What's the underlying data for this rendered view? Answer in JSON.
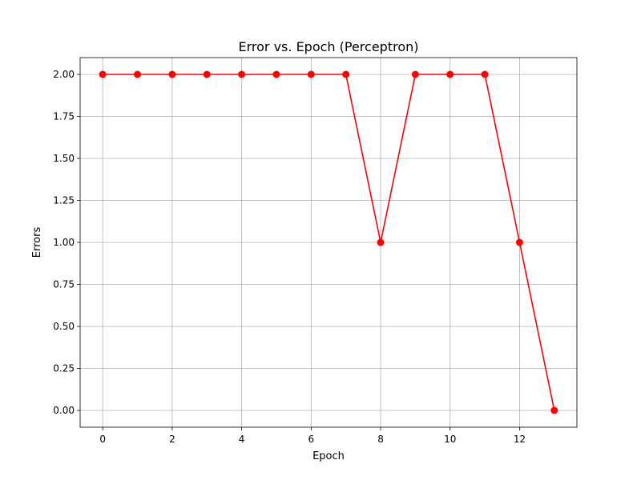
{
  "chart_data": {
    "type": "line",
    "title": "Error vs. Epoch (Perceptron)",
    "xlabel": "Epoch",
    "ylabel": "Errors",
    "x": [
      0,
      1,
      2,
      3,
      4,
      5,
      6,
      7,
      8,
      9,
      10,
      11,
      12,
      13
    ],
    "series": [
      {
        "values": [
          2,
          2,
          2,
          2,
          2,
          2,
          2,
          2,
          1,
          2,
          2,
          2,
          1,
          0
        ],
        "color": "#ff0000",
        "marker": "circle"
      }
    ],
    "xlim": [
      -0.65,
      13.65
    ],
    "ylim": [
      -0.1,
      2.1
    ],
    "xticks": [
      0,
      2,
      4,
      6,
      8,
      10,
      12
    ],
    "xtick_labels": [
      "0",
      "2",
      "4",
      "6",
      "8",
      "10",
      "12"
    ],
    "yticks": [
      0,
      0.25,
      0.5,
      0.75,
      1.0,
      1.25,
      1.5,
      1.75,
      2.0
    ],
    "ytick_labels": [
      "0.00",
      "0.25",
      "0.50",
      "0.75",
      "1.00",
      "1.25",
      "1.50",
      "1.75",
      "2.00"
    ],
    "grid": true,
    "legend": "none"
  }
}
